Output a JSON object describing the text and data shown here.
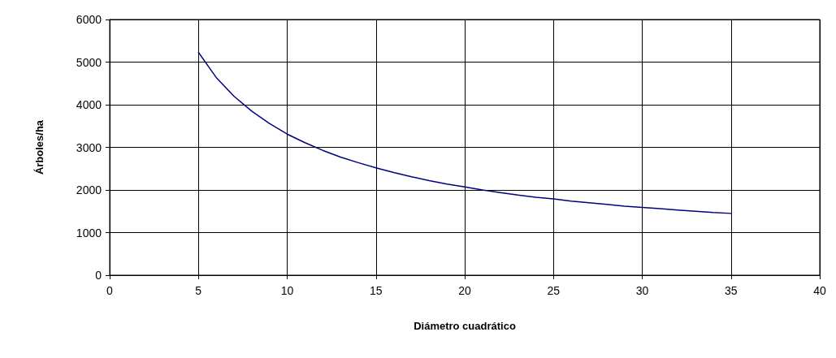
{
  "chart_data": {
    "type": "line",
    "xlabel": "Diámetro cuadrático",
    "ylabel": "Árboles/ha",
    "xlim": [
      0,
      40
    ],
    "xticks": [
      0,
      5,
      10,
      15,
      20,
      25,
      30,
      35,
      40
    ],
    "ylim": [
      0,
      6000
    ],
    "yticks": [
      0,
      1000,
      2000,
      3000,
      4000,
      5000,
      6000
    ],
    "grid": true,
    "marker": "none",
    "line_style": "solid",
    "series": [
      {
        "color": "#000080",
        "x": [
          5,
          6,
          7,
          8,
          9,
          10,
          11,
          12,
          13,
          14,
          15,
          16,
          17,
          18,
          19,
          20,
          21,
          22,
          23,
          24,
          25,
          26,
          27,
          28,
          29,
          30,
          31,
          32,
          33,
          34,
          35
        ],
        "values": [
          5230,
          4640,
          4200,
          3850,
          3560,
          3310,
          3110,
          2930,
          2770,
          2640,
          2520,
          2410,
          2310,
          2220,
          2140,
          2070,
          2000,
          1940,
          1880,
          1830,
          1790,
          1740,
          1700,
          1660,
          1620,
          1590,
          1560,
          1530,
          1500,
          1470,
          1450
        ]
      }
    ]
  }
}
